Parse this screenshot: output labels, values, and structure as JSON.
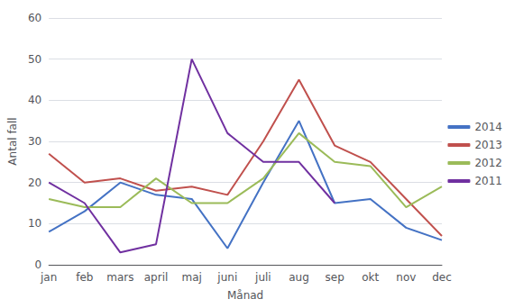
{
  "chart_data": {
    "type": "line",
    "xlabel": "Månad",
    "ylabel": "Antal fall",
    "categories": [
      "jan",
      "feb",
      "mars",
      "april",
      "maj",
      "juni",
      "juli",
      "aug",
      "sep",
      "okt",
      "nov",
      "dec"
    ],
    "series": [
      {
        "name": "2014",
        "color": "#4472C4",
        "values": [
          8,
          13,
          20,
          17,
          16,
          4,
          20,
          35,
          15,
          16,
          9,
          6
        ]
      },
      {
        "name": "2013",
        "color": "#C0504D",
        "values": [
          27,
          20,
          21,
          18,
          19,
          17,
          30,
          45,
          29,
          25,
          16,
          7
        ]
      },
      {
        "name": "2012",
        "color": "#9BBB59",
        "values": [
          16,
          14,
          14,
          21,
          15,
          15,
          21,
          32,
          25,
          24,
          14,
          19
        ]
      },
      {
        "name": "2011",
        "color": "#7030A0",
        "values": [
          20,
          15,
          3,
          5,
          50,
          32,
          25,
          25,
          15,
          null,
          null,
          null
        ]
      }
    ],
    "ylim": [
      0,
      60
    ],
    "yticks": [
      0,
      10,
      20,
      30,
      40,
      50,
      60
    ],
    "grid": true,
    "legend": "right"
  }
}
